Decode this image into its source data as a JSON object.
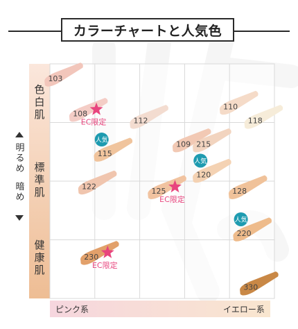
{
  "title": "カラーチャートと人気色",
  "side_labels": [
    "色白肌",
    "標準肌",
    "健康肌"
  ],
  "axis_labels": {
    "lighter": "明るめ",
    "darker": "暗め"
  },
  "bottom_labels": {
    "left": "ピンク系",
    "right": "イエロー系"
  },
  "badge_text": "人気",
  "ec_text": "EC限定",
  "chart_data": {
    "type": "scatter",
    "title": "カラーチャートと人気色",
    "x_axis": {
      "left": "ピンク系",
      "right": "イエロー系",
      "range": [
        0,
        10
      ]
    },
    "y_axis": {
      "top": "明るめ",
      "bottom": "暗め",
      "range": [
        0,
        10
      ]
    },
    "grid": true,
    "points": [
      {
        "label": "103",
        "x": 0.6,
        "y": 9.5,
        "color": "#f2c6bb",
        "popular": false,
        "ec_limited": false
      },
      {
        "label": "108",
        "x": 1.7,
        "y": 8.0,
        "color": "#f4cdc6",
        "popular": false,
        "ec_limited": true
      },
      {
        "label": "112",
        "x": 4.4,
        "y": 7.7,
        "color": "#f3dcd0",
        "popular": false,
        "ec_limited": false
      },
      {
        "label": "110",
        "x": 8.4,
        "y": 8.3,
        "color": "#f5dbc8",
        "popular": false,
        "ec_limited": false
      },
      {
        "label": "118",
        "x": 9.5,
        "y": 7.7,
        "color": "#f6ecd9",
        "popular": false,
        "ec_limited": false
      },
      {
        "label": "115",
        "x": 2.8,
        "y": 6.3,
        "color": "#f0c49d",
        "popular": true,
        "ec_limited": false
      },
      {
        "label": "109",
        "x": 6.3,
        "y": 6.7,
        "color": "#f2c9b4",
        "popular": false,
        "ec_limited": false
      },
      {
        "label": "215",
        "x": 7.2,
        "y": 6.7,
        "color": "#f2d4bf",
        "popular": false,
        "ec_limited": false
      },
      {
        "label": "122",
        "x": 2.1,
        "y": 4.9,
        "color": "#f0c5ae",
        "popular": false,
        "ec_limited": false
      },
      {
        "label": "125",
        "x": 5.2,
        "y": 4.7,
        "color": "#f1c3a0",
        "popular": false,
        "ec_limited": true
      },
      {
        "label": "120",
        "x": 7.2,
        "y": 5.4,
        "color": "#f4d2b3",
        "popular": true,
        "ec_limited": false
      },
      {
        "label": "128",
        "x": 8.8,
        "y": 4.7,
        "color": "#f0c29a",
        "popular": false,
        "ec_limited": false
      },
      {
        "label": "220",
        "x": 9.0,
        "y": 2.9,
        "color": "#eebb8b",
        "popular": true,
        "ec_limited": false
      },
      {
        "label": "230",
        "x": 2.2,
        "y": 1.9,
        "color": "#e2a06a",
        "popular": false,
        "ec_limited": true
      },
      {
        "label": "330",
        "x": 9.3,
        "y": 0.6,
        "color": "#c98846",
        "popular": false,
        "ec_limited": false
      }
    ]
  },
  "colors": {
    "badge": "#1e9bb0",
    "star": "#e8457e",
    "ec_text": "#e8457e",
    "grid": "#d9d9d9",
    "sidebar_top": "#fbe7dc",
    "sidebar_bottom": "#eebd94",
    "bottom_left": "#f6d6de",
    "bottom_right": "#f9e6cf"
  }
}
